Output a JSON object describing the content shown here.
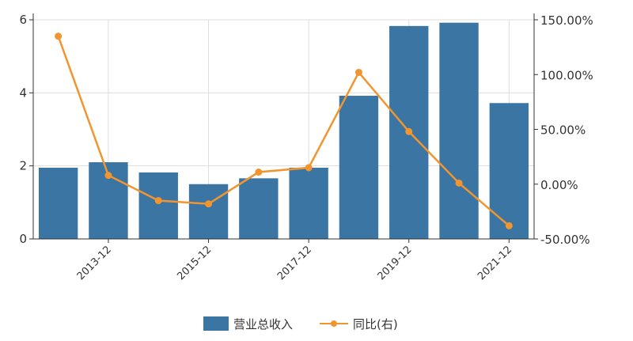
{
  "chart_data": {
    "type": "bar+line",
    "categories": [
      "2012-12",
      "2013-12",
      "2014-12",
      "2015-12",
      "2016-12",
      "2017-12",
      "2018-12",
      "2019-12",
      "2020-12",
      "2021-12"
    ],
    "x_tick_labels": [
      "2013-12",
      "2015-12",
      "2017-12",
      "2019-12",
      "2021-12"
    ],
    "series": [
      {
        "name": "营业总收入",
        "type": "bar",
        "axis": "left",
        "values": [
          1.95,
          2.1,
          1.82,
          1.5,
          1.66,
          1.95,
          3.92,
          5.83,
          5.92,
          3.72
        ]
      },
      {
        "name": "同比(右)",
        "type": "line",
        "axis": "right",
        "values": [
          135.0,
          8.0,
          -15.0,
          -18.0,
          11.0,
          15.0,
          102.0,
          48.0,
          1.0,
          -38.0
        ]
      }
    ],
    "y_left": {
      "ticks": [
        "0",
        "2",
        "4",
        "6"
      ],
      "tick_values": [
        0,
        2,
        4,
        6
      ],
      "lim": [
        0,
        6
      ]
    },
    "y_right": {
      "ticks": [
        "-50.00%",
        "0.00%",
        "50.00%",
        "100.00%",
        "150.00%"
      ],
      "tick_values": [
        -50,
        0,
        50,
        100,
        150
      ],
      "lim": [
        -50,
        150
      ]
    },
    "grid": true,
    "legend_position": "bottom-center",
    "colors": {
      "bar": "#3b75a3",
      "line": "#f0952f",
      "grid": "#dddddd",
      "axis": "#333333"
    }
  }
}
